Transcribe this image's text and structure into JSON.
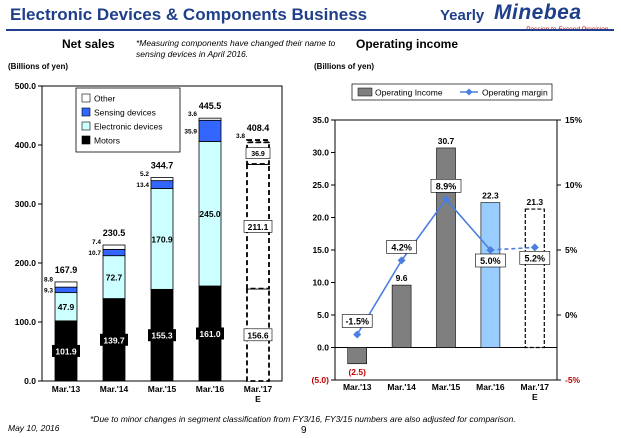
{
  "header": {
    "title": "Electronic Devices & Components Business",
    "yearly": "Yearly",
    "logo": "Minebea",
    "tagline": "Passion to Exceed Precision"
  },
  "net_sales": {
    "title": "Net sales",
    "note": "*Measuring components have changed their name to sensing devices in April 2016.",
    "unit": "(Billions of yen)"
  },
  "operating_income": {
    "title": "Operating income",
    "unit": "(Billions of yen)"
  },
  "footnote": "*Due to minor changes in segment classification from FY3/16, FY3/15 numbers are also adjusted for comparison.",
  "date": "May 10, 2016",
  "page_number": "9",
  "colors": {
    "brand": "#1f3f8a",
    "motors": "#000000",
    "electronic": "#ccffff",
    "sensing": "#3366ff",
    "other": "#ffffff",
    "op_income": "#7f7f7f",
    "op_income_fy16": "#99ccff",
    "margin_line": "#4a7fe0"
  },
  "chart_data": [
    {
      "type": "bar",
      "stacked": true,
      "categories": [
        "Mar.'13",
        "Mar.'14",
        "Mar.'15",
        "Mar.'16",
        "Mar.'17 E"
      ],
      "forecast_index": 4,
      "series": [
        {
          "name": "Motors",
          "values": [
            101.9,
            139.7,
            155.3,
            161.0,
            156.6
          ],
          "labels": [
            "101.9",
            "139.7",
            "155.3",
            "161.0",
            "156.6"
          ]
        },
        {
          "name": "Electronic devices",
          "values": [
            47.9,
            72.7,
            170.9,
            245.0,
            211.1
          ],
          "labels": [
            "47.9",
            "72.7",
            "170.9",
            "245.0",
            "211.1"
          ]
        },
        {
          "name": "Sensing devices",
          "values": [
            9.3,
            10.7,
            13.4,
            35.9,
            36.9
          ],
          "labels": [
            "9.3",
            "10.7",
            "13.4",
            "35.9",
            "36.9"
          ]
        },
        {
          "name": "Other",
          "values": [
            8.8,
            7.4,
            5.2,
            3.6,
            3.8
          ],
          "labels": [
            "8.8",
            "7.4",
            "5.2",
            "3.6",
            "3.8"
          ]
        }
      ],
      "totals": [
        167.9,
        230.5,
        344.7,
        445.5,
        408.4
      ],
      "total_labels": [
        "167.9",
        "230.5",
        "344.7",
        "445.5",
        "408.4"
      ],
      "ylim": [
        0,
        500
      ],
      "yticks": [
        0,
        100,
        200,
        300,
        400,
        500
      ],
      "ytick_labels": [
        "0.0",
        "100.0",
        "200.0",
        "300.0",
        "400.0",
        "500.0"
      ],
      "legend_order": [
        "Other",
        "Sensing devices",
        "Electronic devices",
        "Motors"
      ],
      "legend_position": "top-left"
    },
    {
      "type": "bar",
      "categories": [
        "Mar.'13",
        "Mar.'14",
        "Mar.'15",
        "Mar.'16",
        "Mar.'17 E"
      ],
      "forecast_index": 4,
      "series": [
        {
          "name": "Operating Income",
          "values": [
            -2.5,
            9.6,
            30.7,
            22.3,
            21.3
          ],
          "labels": [
            "(2.5)",
            "9.6",
            "30.7",
            "22.3",
            "21.3"
          ],
          "axis": "left"
        },
        {
          "name": "Operating margin",
          "type": "line",
          "values": [
            -1.5,
            4.2,
            8.9,
            5.0,
            5.2
          ],
          "labels": [
            "-1.5%",
            "4.2%",
            "8.9%",
            "5.0%",
            "5.2%"
          ],
          "axis": "right"
        }
      ],
      "ylim": [
        -5,
        35
      ],
      "yticks": [
        -5,
        0,
        5,
        10,
        15,
        20,
        25,
        30,
        35
      ],
      "ytick_labels": [
        "(5.0)",
        "0.0",
        "5.0",
        "10.0",
        "15.0",
        "20.0",
        "25.0",
        "30.0",
        "35.0"
      ],
      "y2lim": [
        -5,
        15
      ],
      "y2ticks": [
        -5,
        0,
        5,
        10,
        15
      ],
      "y2tick_labels": [
        "-5%",
        "0%",
        "5%",
        "10%",
        "15%"
      ],
      "legend_position": "top"
    }
  ]
}
